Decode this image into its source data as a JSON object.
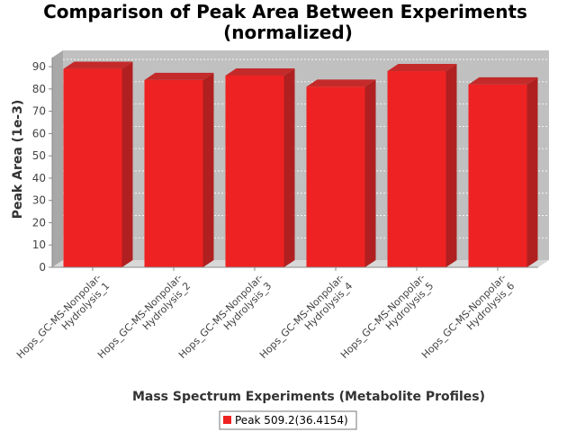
{
  "chart_data": {
    "type": "bar",
    "title_lines": [
      "Comparison of Peak Area Between Experiments",
      "(normalized)"
    ],
    "xlabel": "Mass Spectrum Experiments (Metabolite Profiles)",
    "ylabel": "Peak Area (1e-3)",
    "ylim": [
      0,
      95
    ],
    "yticks": [
      0,
      10,
      20,
      30,
      40,
      50,
      60,
      70,
      80,
      90
    ],
    "grid": true,
    "legend_position": "bottom",
    "categories": [
      [
        "Hops_GC-MS-Nonpolar-",
        "Hydrolysis_1"
      ],
      [
        "Hops_GC-MS-Nonpolar-",
        "Hydrolysis_2"
      ],
      [
        "Hops_GC-MS-Nonpolar-",
        "Hydrolysis_3"
      ],
      [
        "Hops_GC-MS-Nonpolar-",
        "Hydrolysis_4"
      ],
      [
        "Hops_GC-MS-Nonpolar-",
        "Hydrolysis_5"
      ],
      [
        "Hops_GC-MS-Nonpolar-",
        "Hydrolysis_6"
      ]
    ],
    "series": [
      {
        "name": "Peak 509.2(36.4154)",
        "color": "#ee2222",
        "values": [
          89,
          84,
          86,
          81,
          88,
          82
        ]
      }
    ]
  }
}
